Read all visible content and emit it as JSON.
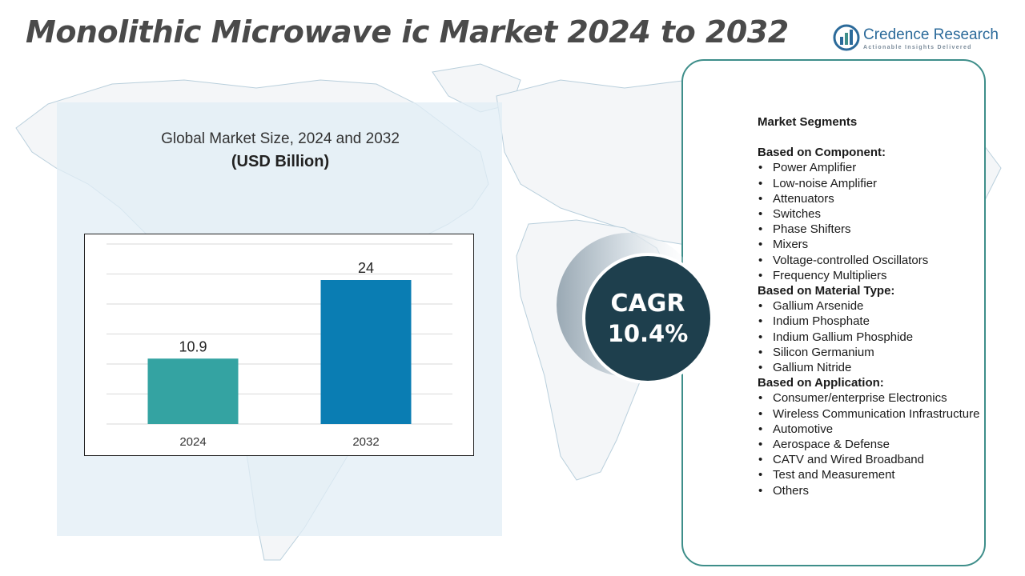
{
  "page": {
    "title": "Monolithic Microwave ic Market 2024 to 2032"
  },
  "logo": {
    "name": "Credence Research",
    "tagline": "Actionable Insights Delivered"
  },
  "chart_data": {
    "type": "bar",
    "title": "Global Market Size, 2024 and 2032",
    "ylabel": "(USD Billion)",
    "xlabel": "",
    "categories": [
      "2024",
      "2032"
    ],
    "values": [
      10.9,
      24
    ],
    "value_labels": [
      "10.9",
      "24"
    ],
    "ylim": [
      0,
      30
    ],
    "grid": true,
    "legend": "none",
    "colors": [
      "#34a3a2",
      "#0a7db3"
    ]
  },
  "cagr": {
    "label": "CAGR",
    "value": "10.4%"
  },
  "segments": {
    "heading": "Market Segments",
    "groups": [
      {
        "title": "Based on Component:",
        "items": [
          "Power Amplifier",
          "Low-noise Amplifier",
          "Attenuators",
          "Switches",
          "Phase Shifters",
          "Mixers",
          "Voltage-controlled Oscillators",
          "Frequency Multipliers"
        ]
      },
      {
        "title": "Based on Material Type:",
        "items": [
          "Gallium Arsenide",
          "Indium Phosphate",
          "Indium Gallium Phosphide",
          "Silicon Germanium",
          "Gallium Nitride"
        ]
      },
      {
        "title": "Based on Application:",
        "items": [
          "Consumer/enterprise Electronics",
          "Wireless Communication Infrastructure",
          "Automotive",
          "Aerospace & Defense",
          "CATV and Wired Broadband",
          "Test and Measurement",
          "Others"
        ]
      }
    ]
  },
  "colors": {
    "accent_teal": "#3e8e8a",
    "cagr_circle": "#1e3f4d",
    "title_gray": "#4a4a4a",
    "brand_blue": "#2b6a9a"
  }
}
